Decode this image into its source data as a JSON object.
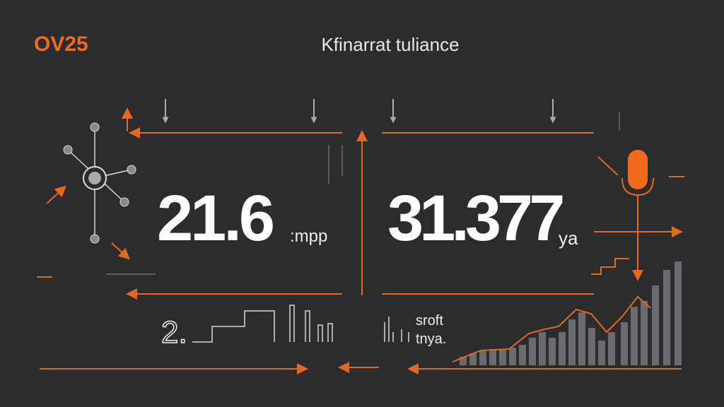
{
  "header": {
    "brand": "OV25",
    "title": "Kfinarrat tuliance"
  },
  "metrics": [
    {
      "value": "21.6",
      "unit": ":mpp"
    },
    {
      "value": "31.377",
      "unit": "ya"
    }
  ],
  "footer": {
    "code": "2.",
    "lines": [
      "sroft",
      "tnya."
    ]
  }
}
